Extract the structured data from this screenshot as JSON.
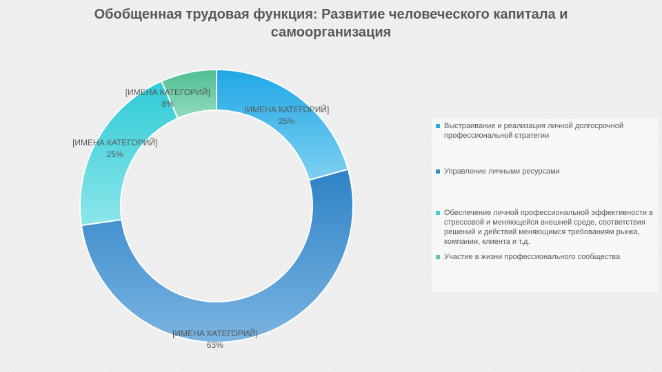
{
  "title": "Обобщенная трудовая функция: Развитие человеческого капитала и самоорганизация",
  "chart_data": {
    "type": "pie",
    "donut": true,
    "slices": [
      {
        "label": "[ИМЕНА КАТЕГОРИЙ]",
        "percent_label": "25%",
        "value": 25,
        "color": "#29abe2",
        "legend": "Выстраивание и реализация личной долгосрочной профессиональной стратегии"
      },
      {
        "label": "[ИМЕНА КАТЕГОРИЙ]",
        "percent_label": "63%",
        "value": 63,
        "color": "#3a87c8",
        "legend": "Управление личными ресурсами"
      },
      {
        "label": "[ИМЕНА КАТЕГОРИЙ]",
        "percent_label": "25%",
        "value": 25,
        "color": "#40ced8",
        "legend": "Обеспечение личной профессиональной эффективности в стрессовой и меняющейся внешней среде, соответствия решений и действий меняющимся требованиям рынка, компании, клиента и т.д."
      },
      {
        "label": "[ИМЕНА КАТЕГОРИЙ]",
        "percent_label": "8%",
        "value": 8,
        "color": "#5ec9a0",
        "legend": "Участие в жизни профессионального сообщества"
      }
    ],
    "legend_position": "right"
  }
}
